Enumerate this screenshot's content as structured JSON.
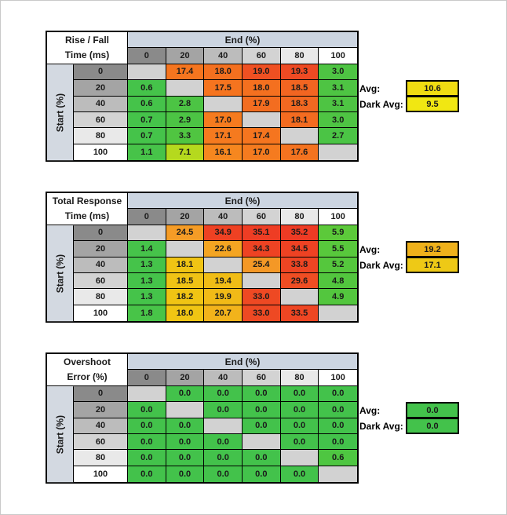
{
  "palette": {
    "diag_gray": "#d2d2d2",
    "header_blue": "#ccd5e1",
    "side_blue": "#d3d9e1",
    "grad": [
      "#8a8a8a",
      "#a4a4a4",
      "#bcbcbc",
      "#d3d3d3",
      "#e9e9e9",
      "#ffffff"
    ]
  },
  "tables": [
    {
      "name": "rise-fall-time",
      "title_line1": "Rise / Fall",
      "title_line2": "Time (ms)",
      "end_header": "End (%)",
      "side_label": "Start (%)",
      "col_headers": [
        "0",
        "20",
        "40",
        "60",
        "80",
        "100"
      ],
      "row_headers": [
        "0",
        "20",
        "40",
        "60",
        "80",
        "100"
      ],
      "rows": [
        [
          {
            "v": "",
            "bg": ""
          },
          {
            "v": "17.4",
            "bg": "#f5751f"
          },
          {
            "v": "18.0",
            "bg": "#f4701f"
          },
          {
            "v": "19.0",
            "bg": "#ef5022"
          },
          {
            "v": "19.3",
            "bg": "#ee4a23"
          },
          {
            "v": "3.0",
            "bg": "#4ec443"
          }
        ],
        [
          {
            "v": "0.6",
            "bg": "#45c34a"
          },
          {
            "v": "",
            "bg": ""
          },
          {
            "v": "17.5",
            "bg": "#f5741f"
          },
          {
            "v": "18.0",
            "bg": "#f4701f"
          },
          {
            "v": "18.5",
            "bg": "#f26521"
          },
          {
            "v": "3.1",
            "bg": "#4ec443"
          }
        ],
        [
          {
            "v": "0.6",
            "bg": "#45c34a"
          },
          {
            "v": "2.8",
            "bg": "#4cc444"
          },
          {
            "v": "",
            "bg": ""
          },
          {
            "v": "17.9",
            "bg": "#f36d20"
          },
          {
            "v": "18.3",
            "bg": "#f26821"
          },
          {
            "v": "3.1",
            "bg": "#4ec443"
          }
        ],
        [
          {
            "v": "0.7",
            "bg": "#45c34a"
          },
          {
            "v": "2.9",
            "bg": "#4cc444"
          },
          {
            "v": "17.0",
            "bg": "#f57b1f"
          },
          {
            "v": "",
            "bg": ""
          },
          {
            "v": "18.1",
            "bg": "#f36b20"
          },
          {
            "v": "3.0",
            "bg": "#4ec443"
          }
        ],
        [
          {
            "v": "0.7",
            "bg": "#45c34a"
          },
          {
            "v": "3.3",
            "bg": "#50c541"
          },
          {
            "v": "17.1",
            "bg": "#f57a1f"
          },
          {
            "v": "17.4",
            "bg": "#f5751f"
          },
          {
            "v": "",
            "bg": ""
          },
          {
            "v": "2.7",
            "bg": "#4bc445"
          }
        ],
        [
          {
            "v": "1.1",
            "bg": "#47c349"
          },
          {
            "v": "7.1",
            "bg": "#b5d91e"
          },
          {
            "v": "16.1",
            "bg": "#f6871f"
          },
          {
            "v": "17.0",
            "bg": "#f57b1f"
          },
          {
            "v": "17.6",
            "bg": "#f47320"
          },
          {
            "v": "",
            "bg": ""
          }
        ]
      ],
      "avg_label": "Avg:",
      "avg_value": "10.6",
      "avg_bg": "#f0dc12",
      "dark_avg_label": "Dark Avg:",
      "dark_avg_value": "9.5",
      "dark_avg_bg": "#f1e712"
    },
    {
      "name": "total-response-time",
      "title_line1": "Total Response",
      "title_line2": "Time (ms)",
      "end_header": "End (%)",
      "side_label": "Start (%)",
      "col_headers": [
        "0",
        "20",
        "40",
        "60",
        "80",
        "100"
      ],
      "row_headers": [
        "0",
        "20",
        "40",
        "60",
        "80",
        "100"
      ],
      "rows": [
        [
          {
            "v": "",
            "bg": ""
          },
          {
            "v": "24.5",
            "bg": "#f59c26"
          },
          {
            "v": "34.9",
            "bg": "#ee4123"
          },
          {
            "v": "35.1",
            "bg": "#ee3d24"
          },
          {
            "v": "35.2",
            "bg": "#ee3b24"
          },
          {
            "v": "5.9",
            "bg": "#5cc93a"
          }
        ],
        [
          {
            "v": "1.4",
            "bg": "#46c34a"
          },
          {
            "v": "",
            "bg": ""
          },
          {
            "v": "22.6",
            "bg": "#f4a522"
          },
          {
            "v": "34.3",
            "bg": "#ee4323"
          },
          {
            "v": "34.5",
            "bg": "#ee4223"
          },
          {
            "v": "5.5",
            "bg": "#58c83c"
          }
        ],
        [
          {
            "v": "1.3",
            "bg": "#45c34a"
          },
          {
            "v": "18.1",
            "bg": "#f0c414"
          },
          {
            "v": "",
            "bg": ""
          },
          {
            "v": "25.4",
            "bg": "#f49826"
          },
          {
            "v": "33.8",
            "bg": "#ee4523"
          },
          {
            "v": "5.2",
            "bg": "#55c73d"
          }
        ],
        [
          {
            "v": "1.3",
            "bg": "#45c34a"
          },
          {
            "v": "18.5",
            "bg": "#f0c315"
          },
          {
            "v": "19.4",
            "bg": "#f0bd16"
          },
          {
            "v": "",
            "bg": ""
          },
          {
            "v": "29.6",
            "bg": "#ef4d23"
          },
          {
            "v": "4.8",
            "bg": "#52c63e"
          }
        ],
        [
          {
            "v": "1.3",
            "bg": "#45c34a"
          },
          {
            "v": "18.2",
            "bg": "#f0c414"
          },
          {
            "v": "19.9",
            "bg": "#f1ba17"
          },
          {
            "v": "33.0",
            "bg": "#ee4923"
          },
          {
            "v": "",
            "bg": ""
          },
          {
            "v": "4.9",
            "bg": "#53c63e"
          }
        ],
        [
          {
            "v": "1.8",
            "bg": "#48c448"
          },
          {
            "v": "18.0",
            "bg": "#f0c513"
          },
          {
            "v": "20.7",
            "bg": "#f2b31b"
          },
          {
            "v": "33.0",
            "bg": "#ee4923"
          },
          {
            "v": "33.5",
            "bg": "#ee4623"
          },
          {
            "v": "",
            "bg": ""
          }
        ]
      ],
      "avg_label": "Avg:",
      "avg_value": "19.2",
      "avg_bg": "#efb11b",
      "dark_avg_label": "Dark Avg:",
      "dark_avg_value": "17.1",
      "dark_avg_bg": "#eec916"
    },
    {
      "name": "overshoot-error",
      "title_line1": "Overshoot",
      "title_line2": "Error (%)",
      "end_header": "End (%)",
      "side_label": "Start (%)",
      "col_headers": [
        "0",
        "20",
        "40",
        "60",
        "80",
        "100"
      ],
      "row_headers": [
        "0",
        "20",
        "40",
        "60",
        "80",
        "100"
      ],
      "rows": [
        [
          {
            "v": "",
            "bg": ""
          },
          {
            "v": "0.0",
            "bg": "#43c24b"
          },
          {
            "v": "0.0",
            "bg": "#43c24b"
          },
          {
            "v": "0.0",
            "bg": "#43c24b"
          },
          {
            "v": "0.0",
            "bg": "#43c24b"
          },
          {
            "v": "0.0",
            "bg": "#43c24b"
          }
        ],
        [
          {
            "v": "0.0",
            "bg": "#43c24b"
          },
          {
            "v": "",
            "bg": ""
          },
          {
            "v": "0.0",
            "bg": "#43c24b"
          },
          {
            "v": "0.0",
            "bg": "#43c24b"
          },
          {
            "v": "0.0",
            "bg": "#43c24b"
          },
          {
            "v": "0.0",
            "bg": "#43c24b"
          }
        ],
        [
          {
            "v": "0.0",
            "bg": "#43c24b"
          },
          {
            "v": "0.0",
            "bg": "#43c24b"
          },
          {
            "v": "",
            "bg": ""
          },
          {
            "v": "0.0",
            "bg": "#43c24b"
          },
          {
            "v": "0.0",
            "bg": "#43c24b"
          },
          {
            "v": "0.0",
            "bg": "#43c24b"
          }
        ],
        [
          {
            "v": "0.0",
            "bg": "#43c24b"
          },
          {
            "v": "0.0",
            "bg": "#43c24b"
          },
          {
            "v": "0.0",
            "bg": "#43c24b"
          },
          {
            "v": "",
            "bg": ""
          },
          {
            "v": "0.0",
            "bg": "#43c24b"
          },
          {
            "v": "0.0",
            "bg": "#43c24b"
          }
        ],
        [
          {
            "v": "0.0",
            "bg": "#43c24b"
          },
          {
            "v": "0.0",
            "bg": "#43c24b"
          },
          {
            "v": "0.0",
            "bg": "#43c24b"
          },
          {
            "v": "0.0",
            "bg": "#43c24b"
          },
          {
            "v": "",
            "bg": ""
          },
          {
            "v": "0.6",
            "bg": "#4ec641"
          }
        ],
        [
          {
            "v": "0.0",
            "bg": "#43c24b"
          },
          {
            "v": "0.0",
            "bg": "#43c24b"
          },
          {
            "v": "0.0",
            "bg": "#43c24b"
          },
          {
            "v": "0.0",
            "bg": "#43c24b"
          },
          {
            "v": "0.0",
            "bg": "#43c24b"
          },
          {
            "v": "",
            "bg": ""
          }
        ]
      ],
      "avg_label": "Avg:",
      "avg_value": "0.0",
      "avg_bg": "#43c24b",
      "dark_avg_label": "Dark Avg:",
      "dark_avg_value": "0.0",
      "dark_avg_bg": "#43c24b"
    }
  ]
}
